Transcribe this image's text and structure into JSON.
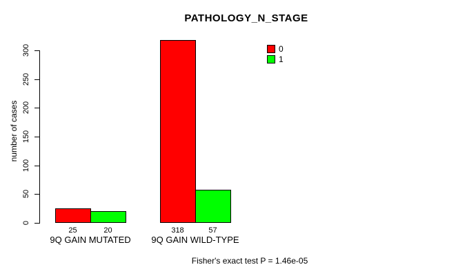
{
  "title": "PATHOLOGY_N_STAGE",
  "footnote": "Fisher's exact test P = 1.46e-05",
  "colors": {
    "series0": "#ff0000",
    "series1": "#00ff00",
    "axis": "#000000",
    "background": "#ffffff"
  },
  "chart_data": {
    "type": "bar",
    "title": "PATHOLOGY_N_STAGE",
    "xlabel": "",
    "ylabel": "number of cases",
    "categories": [
      "9Q GAIN MUTATED",
      "9Q GAIN WILD-TYPE"
    ],
    "series": [
      {
        "name": "0",
        "color": "#ff0000",
        "values": [
          25,
          318
        ]
      },
      {
        "name": "1",
        "color": "#00ff00",
        "values": [
          20,
          57
        ]
      }
    ],
    "bar_value_labels": [
      [
        "25",
        "318"
      ],
      [
        "20",
        "57"
      ]
    ],
    "yticks": [
      0,
      50,
      100,
      150,
      200,
      250,
      300
    ],
    "ylim": [
      0,
      300
    ],
    "grid": false,
    "legend_position": "top-right",
    "annotation": "Fisher's exact test P = 1.46e-05"
  }
}
